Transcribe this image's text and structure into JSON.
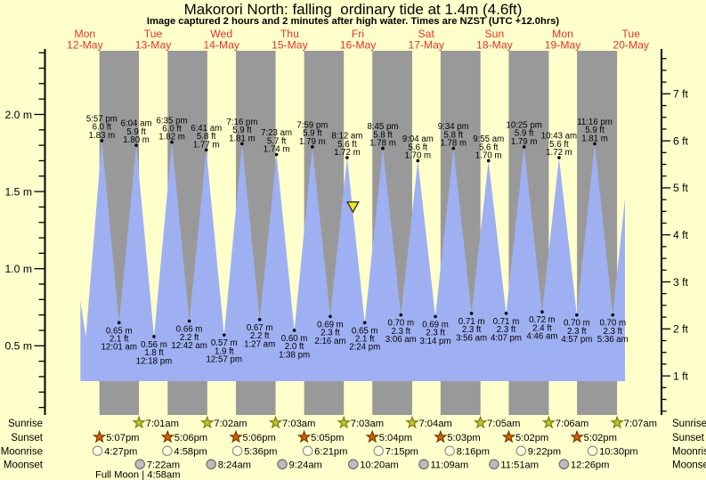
{
  "title": "Makorori North: falling  ordinary tide at 1.4m (4.6ft)",
  "subtitle": "Image captured 2 hours and 2 minutes after high water. Times are NZST (UTC +12.0hrs)",
  "colors": {
    "background": "#ffffcc",
    "night_band": "#999999",
    "tide_fill": "#9fb0f2",
    "day_label": "#e6332a",
    "marker_fill": "#f1e71c",
    "marker_stroke": "#333333",
    "sunrise_fill": "#c3c32e",
    "sunrise_stroke": "#7d7d10",
    "sunset_fill": "#cc6600",
    "sunset_stroke": "#803300",
    "moonrise_fill": "#ffffe0",
    "moonrise_stroke": "#909090",
    "moonset_fill": "#bcbcbc",
    "moonset_stroke": "#6e6e6e",
    "text": "#000000"
  },
  "chart_data": {
    "type": "area",
    "title": "Makorori North: falling  ordinary tide at 1.4m (4.6ft)",
    "ylabel_left": "meters",
    "ylabel_right": "feet",
    "ylim_m": [
      0.05,
      2.41
    ],
    "left_axis_labels": [
      "2.0 m",
      "1.5 m",
      "1.0 m",
      "0.5 m"
    ],
    "right_axis_labels": [
      "7 ft",
      "6 ft",
      "5 ft",
      "4 ft",
      "3 ft",
      "2 ft",
      "1 ft"
    ],
    "days": [
      {
        "dow": "Mon",
        "date": "12-May"
      },
      {
        "dow": "Tue",
        "date": "13-May"
      },
      {
        "dow": "Wed",
        "date": "14-May"
      },
      {
        "dow": "Thu",
        "date": "15-May"
      },
      {
        "dow": "Fri",
        "date": "16-May"
      },
      {
        "dow": "Sat",
        "date": "17-May"
      },
      {
        "dow": "Sun",
        "date": "18-May"
      },
      {
        "dow": "Mon",
        "date": "19-May"
      },
      {
        "dow": "Tue",
        "date": "20-May"
      }
    ],
    "tides": [
      {
        "day": 0,
        "time": "5:57 pm",
        "type": "high",
        "ft": "6.0 ft",
        "m": "1.83 m"
      },
      {
        "day": 1,
        "time": "12:01 am",
        "type": "low",
        "ft": "2.1 ft",
        "m": "0.65 m"
      },
      {
        "day": 1,
        "time": "6:04 am",
        "type": "high",
        "ft": "5.9 ft",
        "m": "1.80 m"
      },
      {
        "day": 1,
        "time": "12:18 pm",
        "type": "low",
        "ft": "1.8 ft",
        "m": "0.56 m"
      },
      {
        "day": 1,
        "time": "6:35 pm",
        "type": "high",
        "ft": "6.0 ft",
        "m": "1.82 m"
      },
      {
        "day": 2,
        "time": "12:42 am",
        "type": "low",
        "ft": "2.2 ft",
        "m": "0.66 m"
      },
      {
        "day": 2,
        "time": "6:41 am",
        "type": "high",
        "ft": "5.8 ft",
        "m": "1.77 m"
      },
      {
        "day": 2,
        "time": "12:57 pm",
        "type": "low",
        "ft": "1.9 ft",
        "m": "0.57 m"
      },
      {
        "day": 2,
        "time": "7:16 pm",
        "type": "high",
        "ft": "5.9 ft",
        "m": "1.81 m"
      },
      {
        "day": 3,
        "time": "1:27 am",
        "type": "low",
        "ft": "2.2 ft",
        "m": "0.67 m"
      },
      {
        "day": 3,
        "time": "7:23 am",
        "type": "high",
        "ft": "5.7 ft",
        "m": "1.74 m"
      },
      {
        "day": 3,
        "time": "1:38 pm",
        "type": "low",
        "ft": "2.0 ft",
        "m": "0.60 m"
      },
      {
        "day": 3,
        "time": "7:59 pm",
        "type": "high",
        "ft": "5.9 ft",
        "m": "1.79 m"
      },
      {
        "day": 4,
        "time": "2:16 am",
        "type": "low",
        "ft": "2.3 ft",
        "m": "0.69 m"
      },
      {
        "day": 4,
        "time": "8:12 am",
        "type": "high",
        "ft": "5.6 ft",
        "m": "1.72 m"
      },
      {
        "day": 4,
        "time": "2:24 pm",
        "type": "low",
        "ft": "2.1 ft",
        "m": "0.65 m"
      },
      {
        "day": 4,
        "time": "8:45 pm",
        "type": "high",
        "ft": "5.8 ft",
        "m": "1.78 m"
      },
      {
        "day": 5,
        "time": "3:06 am",
        "type": "low",
        "ft": "2.3 ft",
        "m": "0.70 m"
      },
      {
        "day": 5,
        "time": "9:04 am",
        "type": "high",
        "ft": "5.6 ft",
        "m": "1.70 m"
      },
      {
        "day": 5,
        "time": "3:14 pm",
        "type": "low",
        "ft": "2.3 ft",
        "m": "0.69 m"
      },
      {
        "day": 5,
        "time": "9:34 pm",
        "type": "high",
        "ft": "5.8 ft",
        "m": "1.78 m"
      },
      {
        "day": 6,
        "time": "3:56 am",
        "type": "low",
        "ft": "2.3 ft",
        "m": "0.71 m"
      },
      {
        "day": 6,
        "time": "9:55 am",
        "type": "high",
        "ft": "5.6 ft",
        "m": "1.70 m"
      },
      {
        "day": 6,
        "time": "4:07 pm",
        "type": "low",
        "ft": "2.3 ft",
        "m": "0.71 m"
      },
      {
        "day": 6,
        "time": "10:25 pm",
        "type": "high",
        "ft": "5.9 ft",
        "m": "1.79 m"
      },
      {
        "day": 7,
        "time": "4:46 am",
        "type": "low",
        "ft": "2.4 ft",
        "m": "0.72 m"
      },
      {
        "day": 7,
        "time": "10:43 am",
        "type": "high",
        "ft": "5.6 ft",
        "m": "1.72 m"
      },
      {
        "day": 7,
        "time": "4:57 pm",
        "type": "low",
        "ft": "2.3 ft",
        "m": "0.70 m"
      },
      {
        "day": 7,
        "time": "11:16 pm",
        "type": "high",
        "ft": "5.9 ft",
        "m": "1.81 m"
      },
      {
        "day": 8,
        "time": "5:36 am",
        "type": "low",
        "ft": "2.3 ft",
        "m": "0.70 m"
      }
    ],
    "curve_edges": {
      "start": {
        "day": 0,
        "time": "10:26 am",
        "m_val": 0.79
      },
      "pre_low": {
        "day": 0,
        "time": "12:20 pm",
        "m_val": 0.56
      },
      "end_virtual_high": {
        "day": 8,
        "time": "11:55 am",
        "m_val": 1.81
      },
      "end_cut": {
        "day": 8,
        "time": "9:54 am"
      }
    },
    "current_marker": {
      "day": 4,
      "time": "10:14 am",
      "height_m": 1.4
    },
    "sun_moon": {
      "left_labels": [
        "Sunrise",
        "Sunset",
        "Moonrise",
        "Moonset"
      ],
      "right_labels": [
        "Sunrise",
        "Sunset",
        "Moonrise",
        "Moonset"
      ],
      "sunrise": [
        {
          "day": 1,
          "time": "7:01am"
        },
        {
          "day": 2,
          "time": "7:02am"
        },
        {
          "day": 3,
          "time": "7:03am"
        },
        {
          "day": 4,
          "time": "7:03am"
        },
        {
          "day": 5,
          "time": "7:04am"
        },
        {
          "day": 6,
          "time": "7:05am"
        },
        {
          "day": 7,
          "time": "7:06am"
        },
        {
          "day": 8,
          "time": "7:07am"
        }
      ],
      "sunset": [
        {
          "day": 0,
          "time": "5:07pm"
        },
        {
          "day": 1,
          "time": "5:06pm"
        },
        {
          "day": 2,
          "time": "5:06pm"
        },
        {
          "day": 3,
          "time": "5:05pm"
        },
        {
          "day": 4,
          "time": "5:04pm"
        },
        {
          "day": 5,
          "time": "5:03pm"
        },
        {
          "day": 6,
          "time": "5:02pm"
        },
        {
          "day": 7,
          "time": "5:02pm"
        }
      ],
      "moonrise": [
        {
          "day": 0,
          "time": "4:27pm"
        },
        {
          "day": 1,
          "time": "4:58pm"
        },
        {
          "day": 2,
          "time": "5:36pm"
        },
        {
          "day": 3,
          "time": "6:21pm"
        },
        {
          "day": 4,
          "time": "7:15pm"
        },
        {
          "day": 5,
          "time": "8:16pm"
        },
        {
          "day": 6,
          "time": "9:22pm"
        },
        {
          "day": 7,
          "time": "10:30pm"
        }
      ],
      "moonset": [
        {
          "day": 1,
          "time": "7:22am"
        },
        {
          "day": 2,
          "time": "8:24am"
        },
        {
          "day": 3,
          "time": "9:24am"
        },
        {
          "day": 4,
          "time": "10:20am"
        },
        {
          "day": 5,
          "time": "11:09am"
        },
        {
          "day": 6,
          "time": "11:51am"
        },
        {
          "day": 7,
          "time": "12:26pm"
        }
      ],
      "footnote": "Full Moon | 4:58am"
    }
  }
}
